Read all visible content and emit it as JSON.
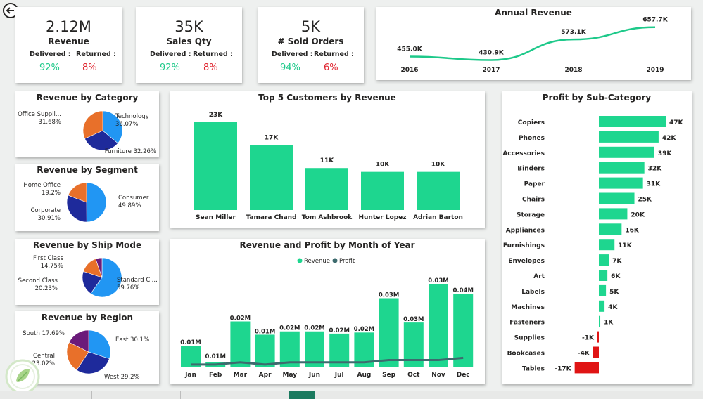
{
  "kpis": [
    {
      "value": "2.12M",
      "label": "Revenue",
      "delivered_label": "Delivered :",
      "returned_label": "Returned :",
      "delivered": "92%",
      "returned": "8%"
    },
    {
      "value": "35K",
      "label": "Sales Qty",
      "delivered_label": "Delivered :",
      "returned_label": "Returned :",
      "delivered": "92%",
      "returned": "8%"
    },
    {
      "value": "5K",
      "label": "# Sold Orders",
      "delivered_label": "Delivered :",
      "returned_label": "Returned :",
      "delivered": "94%",
      "returned": "6%"
    }
  ],
  "chart_data": [
    {
      "id": "annual_revenue",
      "type": "line",
      "title": "Annual Revenue",
      "x": [
        "2016",
        "2017",
        "2018",
        "2019"
      ],
      "values": [
        455.0,
        430.9,
        573.1,
        657.7
      ],
      "labels": [
        "455.0K",
        "430.9K",
        "573.1K",
        "657.7K"
      ],
      "color": "#1ec98a"
    },
    {
      "id": "revenue_by_category",
      "type": "pie",
      "title": "Revenue by Category",
      "slices": [
        {
          "name": "Technology",
          "pct": "36.07%",
          "value": 36.07,
          "color": "#2196f3"
        },
        {
          "name": "Furniture",
          "pct": "32.26%",
          "value": 32.26,
          "color": "#1e2a9b"
        },
        {
          "name": "Office Suppli...",
          "pct": "31.68%",
          "value": 31.68,
          "color": "#e8702a"
        }
      ]
    },
    {
      "id": "revenue_by_segment",
      "type": "pie",
      "title": "Revenue by Segment",
      "slices": [
        {
          "name": "Consumer",
          "pct": "49.89%",
          "value": 49.89,
          "color": "#2196f3"
        },
        {
          "name": "Corporate",
          "pct": "30.91%",
          "value": 30.91,
          "color": "#1e2a9b"
        },
        {
          "name": "Home Office",
          "pct": "19.2%",
          "value": 19.2,
          "color": "#e8702a"
        }
      ]
    },
    {
      "id": "revenue_by_ship_mode",
      "type": "pie",
      "title": "Revenue by Ship Mode",
      "slices": [
        {
          "name": "Standard Cl...",
          "pct": "59.76%",
          "value": 59.76,
          "color": "#2196f3"
        },
        {
          "name": "Second Class",
          "pct": "20.23%",
          "value": 20.23,
          "color": "#1e2a9b"
        },
        {
          "name": "First Class",
          "pct": "14.75%",
          "value": 14.75,
          "color": "#e8702a"
        },
        {
          "name": "",
          "pct": "",
          "value": 5.26,
          "color": "#6b1b7a"
        }
      ]
    },
    {
      "id": "revenue_by_region",
      "type": "pie",
      "title": "Revenue by Region",
      "slices": [
        {
          "name": "East",
          "pct": "30.1%",
          "value": 30.1,
          "color": "#2196f3"
        },
        {
          "name": "West",
          "pct": "29.2%",
          "value": 29.2,
          "color": "#1e2a9b"
        },
        {
          "name": "Central",
          "pct": "23.02%",
          "value": 23.02,
          "color": "#e8702a"
        },
        {
          "name": "South",
          "pct": "17.69%",
          "value": 17.69,
          "color": "#6b1b7a"
        }
      ]
    },
    {
      "id": "top5_customers",
      "type": "bar",
      "title": "Top 5 Customers by Revenue",
      "categories": [
        "Sean Miller",
        "Tamara Chand",
        "Tom Ashbrook",
        "Hunter Lopez",
        "Adrian Barton"
      ],
      "values": [
        23,
        17,
        11,
        10,
        10
      ],
      "labels": [
        "23K",
        "17K",
        "11K",
        "10K",
        "10K"
      ],
      "color": "#1ed68f"
    },
    {
      "id": "revenue_profit_month",
      "type": "bar",
      "title": "Revenue and Profit by Month of Year",
      "legend": [
        "Revenue",
        "Profit"
      ],
      "categories": [
        "Jan",
        "Feb",
        "Mar",
        "Apr",
        "May",
        "Jun",
        "Jul",
        "Aug",
        "Sep",
        "Oct",
        "Nov",
        "Dec"
      ],
      "series": [
        {
          "name": "Revenue",
          "values": [
            0.095,
            0.02,
            0.205,
            0.145,
            0.16,
            0.16,
            0.15,
            0.155,
            0.31,
            0.2,
            0.375,
            0.33
          ],
          "color": "#1ed68f"
        },
        {
          "name": "Profit",
          "values": [
            0.01,
            0.01,
            0.02,
            0.01,
            0.02,
            0.02,
            0.02,
            0.02,
            0.03,
            0.03,
            0.03,
            0.04
          ],
          "color": "#3d6b6e"
        }
      ],
      "profit_labels": [
        "0.01M",
        "0.01M",
        "0.02M",
        "0.01M",
        "0.02M",
        "0.02M",
        "0.02M",
        "0.02M",
        "0.03M",
        "0.03M",
        "0.03M",
        "0.04M"
      ]
    },
    {
      "id": "profit_by_subcategory",
      "type": "bar",
      "title": "Profit by Sub-Category",
      "categories": [
        "Copiers",
        "Phones",
        "Accessories",
        "Binders",
        "Paper",
        "Chairs",
        "Storage",
        "Appliances",
        "Furnishings",
        "Envelopes",
        "Art",
        "Labels",
        "Machines",
        "Fasteners",
        "Supplies",
        "Bookcases",
        "Tables"
      ],
      "values": [
        47,
        42,
        39,
        32,
        31,
        25,
        20,
        16,
        11,
        7,
        6,
        5,
        4,
        1,
        -1,
        -4,
        -17
      ],
      "labels": [
        "47K",
        "42K",
        "39K",
        "32K",
        "31K",
        "25K",
        "20K",
        "16K",
        "11K",
        "7K",
        "6K",
        "5K",
        "4K",
        "1K",
        "-1K",
        "-4K",
        "-17K"
      ],
      "positive_color": "#1ed68f",
      "negative_color": "#e01414"
    }
  ]
}
